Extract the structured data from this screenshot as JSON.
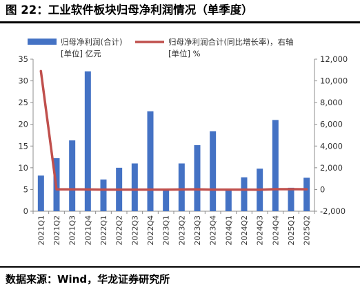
{
  "figure": {
    "title": "图 22：工业软件板块归母净利润情况（单季度）",
    "source": "数据来源：Wind，华龙证券研究所"
  },
  "chart_data": {
    "type": "bar+line",
    "categories": [
      "2021Q1",
      "2021Q2",
      "2021Q3",
      "2021Q4",
      "2022Q1",
      "2022Q2",
      "2022Q3",
      "2022Q4",
      "2023Q1",
      "2023Q2",
      "2023Q3",
      "2023Q4",
      "2024Q1",
      "2024Q2",
      "2024Q3",
      "2024Q4",
      "2025Q1",
      "2025Q2"
    ],
    "series": [
      {
        "name": "归母净利润(合计)",
        "type": "bar",
        "axis": "left",
        "unit_label": "[单位] 亿元",
        "color": "#4472C4",
        "values": [
          8.2,
          12.2,
          16.3,
          32.2,
          7.3,
          10.0,
          11.0,
          23.0,
          4.9,
          11.0,
          15.2,
          18.4,
          5.2,
          7.8,
          9.8,
          21.0,
          5.4,
          7.7
        ]
      },
      {
        "name": "归母净利润合计(同比增长率)，右轴",
        "type": "line",
        "axis": "right",
        "unit_label": "[单位] %",
        "color": "#C0504D",
        "values": [
          10900,
          10,
          10,
          0,
          -10,
          -10,
          -10,
          -10,
          -10,
          0,
          10,
          -10,
          -10,
          -10,
          -20,
          30,
          30,
          20
        ]
      }
    ],
    "left_axis": {
      "ylim": [
        0,
        35
      ],
      "ticks": [
        "0",
        "5",
        "10",
        "15",
        "20",
        "25",
        "30",
        "35"
      ]
    },
    "right_axis": {
      "ylim": [
        -2000,
        12000
      ],
      "ticks": [
        "-2,000",
        "0",
        "2,000",
        "4,000",
        "6,000",
        "8,000",
        "10,000",
        "12,000"
      ]
    },
    "grid": false,
    "legend_position": "top"
  }
}
